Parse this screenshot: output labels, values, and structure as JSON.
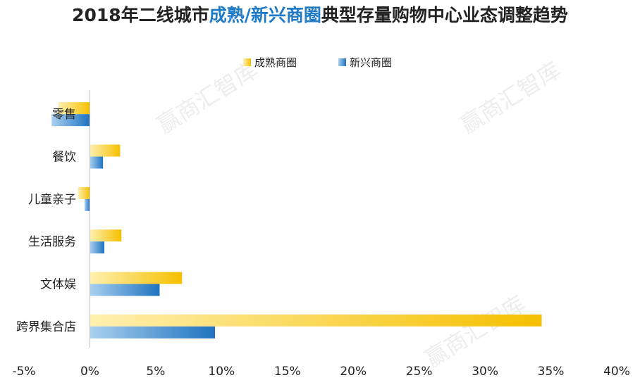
{
  "title": {
    "part1": "2018年二线城市",
    "part2": "成熟/新兴商圈",
    "part3": "典型存量购物中心业态调整趋势"
  },
  "watermark": "赢商汇智库",
  "colors": {
    "title_highlight": "#1f7ac7",
    "mature": "#f5c000",
    "mature_light": "#fff0b0",
    "emerging": "#1f73c0",
    "emerging_light": "#a9d0f0",
    "axis": "#bfbfbf",
    "text": "#222222"
  },
  "chart_data": {
    "type": "bar",
    "orientation": "horizontal",
    "categories": [
      "零售",
      "餐饮",
      "儿童亲子",
      "生活服务",
      "文体娱",
      "跨界集合店"
    ],
    "series": [
      {
        "name": "成熟商圈",
        "values": [
          -2.4,
          2.3,
          -0.9,
          2.4,
          7.0,
          34.3
        ]
      },
      {
        "name": "新兴商圈",
        "values": [
          -2.9,
          1.0,
          -0.4,
          1.1,
          5.3,
          9.5
        ]
      }
    ],
    "xlim": [
      -5,
      40
    ],
    "xticks": [
      -5,
      0,
      5,
      10,
      15,
      20,
      25,
      30,
      35,
      40
    ],
    "xtick_labels": [
      "-5%",
      "0%",
      "5%",
      "10%",
      "15%",
      "20%",
      "25%",
      "30%",
      "35%",
      "40%"
    ],
    "legend": "top-center",
    "grid": false
  }
}
